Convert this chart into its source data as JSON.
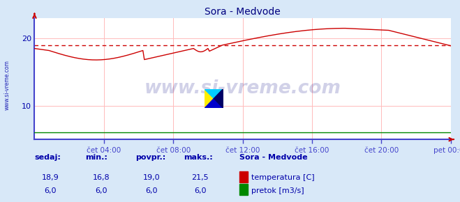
{
  "title": "Sora - Medvode",
  "title_color": "#000080",
  "bg_color": "#d8e8f8",
  "plot_bg_color": "#ffffff",
  "grid_color": "#ffbbbb",
  "axis_color_blue": "#4444cc",
  "axis_color_red": "#cc0000",
  "text_color": "#0000aa",
  "watermark_text": "www.si-vreme.com",
  "watermark_color": "#000080",
  "watermark_alpha": 0.18,
  "x_ticks_labels": [
    "čet 04:00",
    "čet 08:00",
    "čet 12:00",
    "čet 16:00",
    "čet 20:00",
    "pet 00:00"
  ],
  "x_ticks_pos": [
    48,
    96,
    144,
    192,
    240,
    288
  ],
  "y_ticks": [
    10,
    20
  ],
  "ylim": [
    5,
    23
  ],
  "xlim": [
    0,
    288
  ],
  "temp_color": "#cc0000",
  "flow_color": "#008800",
  "avg_temp": 19.0,
  "avg_color": "#cc0000",
  "legend_title": "Sora - Medvode",
  "legend_items": [
    {
      "label": "temperatura [C]",
      "color": "#cc0000"
    },
    {
      "label": "pretok [m3/s]",
      "color": "#008800"
    }
  ],
  "stats_headers": [
    "sedaj:",
    "min.:",
    "povpr.:",
    "maks.:"
  ],
  "stats_temp": [
    "18,9",
    "16,8",
    "19,0",
    "21,5"
  ],
  "stats_flow": [
    "6,0",
    "6,0",
    "6,0",
    "6,0"
  ],
  "left_label": "www.si-vreme.com"
}
